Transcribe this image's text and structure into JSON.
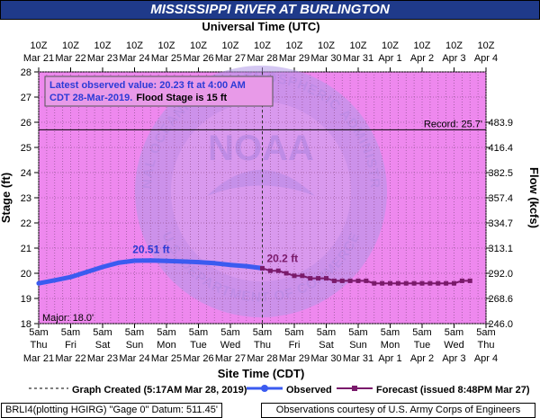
{
  "colors": {
    "plot_bg": "#ee88ee",
    "title_bg": "#1f3a8a",
    "observed": "#3b5bf0",
    "forecast": "#7a1a6b",
    "annotation_text": "#2b3bd6",
    "watermark": "#a8a0e6"
  },
  "icons": {
    "watermark": "noaa-logo"
  },
  "chart_data": {
    "type": "line",
    "title": "MISSISSIPPI RIVER AT BURLINGTON",
    "top_axis_title": "Universal Time (UTC)",
    "top_axis_ticks": [
      {
        "hour": "10Z",
        "date": "Mar 21"
      },
      {
        "hour": "10Z",
        "date": "Mar 22"
      },
      {
        "hour": "10Z",
        "date": "Mar 23"
      },
      {
        "hour": "10Z",
        "date": "Mar 24"
      },
      {
        "hour": "10Z",
        "date": "Mar 25"
      },
      {
        "hour": "10Z",
        "date": "Mar 26"
      },
      {
        "hour": "10Z",
        "date": "Mar 27"
      },
      {
        "hour": "10Z",
        "date": "Mar 28"
      },
      {
        "hour": "10Z",
        "date": "Mar 29"
      },
      {
        "hour": "10Z",
        "date": "Mar 30"
      },
      {
        "hour": "10Z",
        "date": "Mar 31"
      },
      {
        "hour": "10Z",
        "date": "Apr 1"
      },
      {
        "hour": "10Z",
        "date": "Apr 2"
      },
      {
        "hour": "10Z",
        "date": "Apr 3"
      },
      {
        "hour": "10Z",
        "date": "Apr 4"
      }
    ],
    "xlabel": "Site Time (CDT)",
    "x_ticks": [
      {
        "time": "5am",
        "day": "Thu",
        "date": "Mar 21"
      },
      {
        "time": "5am",
        "day": "Fri",
        "date": "Mar 22"
      },
      {
        "time": "5am",
        "day": "Sat",
        "date": "Mar 23"
      },
      {
        "time": "5am",
        "day": "Sun",
        "date": "Mar 24"
      },
      {
        "time": "5am",
        "day": "Mon",
        "date": "Mar 25"
      },
      {
        "time": "5am",
        "day": "Tue",
        "date": "Mar 26"
      },
      {
        "time": "5am",
        "day": "Wed",
        "date": "Mar 27"
      },
      {
        "time": "5am",
        "day": "Thu",
        "date": "Mar 28"
      },
      {
        "time": "5am",
        "day": "Fri",
        "date": "Mar 29"
      },
      {
        "time": "5am",
        "day": "Sat",
        "date": "Mar 30"
      },
      {
        "time": "5am",
        "day": "Sun",
        "date": "Mar 31"
      },
      {
        "time": "5am",
        "day": "Mon",
        "date": "Apr 1"
      },
      {
        "time": "5am",
        "day": "Tue",
        "date": "Apr 2"
      },
      {
        "time": "5am",
        "day": "Wed",
        "date": "Apr 3"
      },
      {
        "time": "5am",
        "day": "Thu",
        "date": "Apr 4"
      }
    ],
    "x_range_days": [
      "Mar 21",
      "Apr 4"
    ],
    "ylabel": "Stage (ft)",
    "ylim": [
      18,
      28
    ],
    "y_ticks": [
      18,
      19,
      20,
      21,
      22,
      23,
      24,
      25,
      26,
      27,
      28
    ],
    "y2label": "Flow (kcfs)",
    "y2_ticks": [
      {
        "stage": 18.0,
        "label": "246.0"
      },
      {
        "stage": 19.0,
        "label": "268.6"
      },
      {
        "stage": 20.0,
        "label": "292.0"
      },
      {
        "stage": 21.0,
        "label": "313.1"
      },
      {
        "stage": 22.0,
        "label": "334.7"
      },
      {
        "stage": 23.0,
        "label": "357.4"
      },
      {
        "stage": 24.0,
        "label": "382.5"
      },
      {
        "stage": 25.0,
        "label": "416.4"
      },
      {
        "stage": 26.0,
        "label": "483.9"
      }
    ],
    "grid": true,
    "series": [
      {
        "name": "Observed",
        "x_days": [
          0,
          0.5,
          1,
          1.5,
          2,
          2.5,
          3,
          3.5,
          4,
          4.5,
          5,
          5.5,
          6,
          6.5,
          7
        ],
        "values": [
          19.6,
          19.72,
          19.85,
          20.05,
          20.25,
          20.42,
          20.5,
          20.51,
          20.49,
          20.47,
          20.44,
          20.4,
          20.33,
          20.28,
          20.2
        ]
      },
      {
        "name": "Forecast",
        "x_days": [
          7,
          7.25,
          7.5,
          7.75,
          8,
          8.25,
          8.5,
          8.75,
          9,
          9.25,
          9.5,
          9.75,
          10,
          10.25,
          10.5,
          10.75,
          11,
          11.25,
          11.5,
          11.75,
          12,
          12.25,
          12.5,
          12.75,
          13,
          13.25,
          13.5
        ],
        "values": [
          20.2,
          20.1,
          20.1,
          20.0,
          19.9,
          19.9,
          19.8,
          19.8,
          19.8,
          19.7,
          19.7,
          19.7,
          19.7,
          19.7,
          19.6,
          19.6,
          19.6,
          19.6,
          19.6,
          19.6,
          19.6,
          19.6,
          19.6,
          19.6,
          19.6,
          19.7,
          19.7
        ]
      }
    ],
    "record": {
      "value": 25.7,
      "label": "Record: 25.7'"
    },
    "major": {
      "value": 18.0,
      "label": "Major: 18.0'"
    },
    "current_time_day": 7,
    "annotations": [
      {
        "label": "20.51 ft",
        "x_day": 3.5,
        "y": 20.51
      },
      {
        "label": "20.2 ft",
        "x_day": 7,
        "y": 20.2
      }
    ],
    "info_box": {
      "line1": "Latest observed value: 20.23  ft at 4:00 AM",
      "line2_date": "CDT 28-Mar-2019.",
      "line2_flood": "Flood Stage is 15 ft"
    }
  },
  "watermark_text": {
    "top": "NATIONAL OCEANIC AND ATMOSPHERIC ADMINISTRATION",
    "bottom": "U.S. DEPARTMENT OF COMMERCE",
    "center": "NOAA"
  },
  "legend": {
    "graph_created": "Graph Created (5:17AM Mar 28, 2019)",
    "observed": "Observed",
    "forecast": "Forecast (issued 8:48PM Mar 27)"
  },
  "footer": {
    "left": "BRLI4(plotting HGIRG) \"Gage 0\" Datum: 511.45'",
    "right": "Observations courtesy of U.S. Army Corps of Engineers"
  }
}
